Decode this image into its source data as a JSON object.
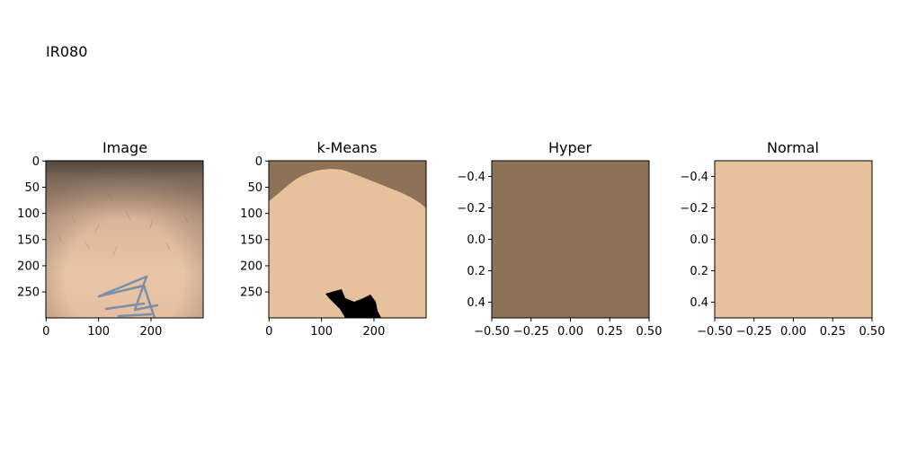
{
  "suptitle": "IR080",
  "chart_data": [
    {
      "type": "heatmap",
      "title": "Image",
      "content": "skin photograph with hair and a faded blue tattoo near the bottom",
      "xticks": [
        0,
        100,
        200
      ],
      "yticks": [
        0,
        50,
        100,
        150,
        200,
        250
      ],
      "xlim": [
        -0.5,
        299.5
      ],
      "ylim": [
        299.5,
        -0.5
      ]
    },
    {
      "type": "heatmap",
      "title": "k-Means",
      "colors": {
        "dark_skin": "#8e7257",
        "light_skin": "#e7c09c",
        "black": "#000000"
      },
      "xticks": [
        0,
        100,
        200
      ],
      "yticks": [
        0,
        50,
        100,
        150,
        200,
        250
      ],
      "xlim": [
        -0.5,
        299.5
      ],
      "ylim": [
        299.5,
        -0.5
      ]
    },
    {
      "type": "heatmap",
      "title": "Hyper",
      "color": "#8e7257",
      "xticks": [
        -0.5,
        -0.25,
        0.0,
        0.25,
        0.5
      ],
      "xtick_labels": [
        "−0.50",
        "−0.25",
        "0.00",
        "0.25",
        "0.50"
      ],
      "yticks": [
        -0.4,
        -0.2,
        0.0,
        0.2,
        0.4
      ],
      "ytick_labels": [
        "−0.4",
        "−0.2",
        "0.0",
        "0.2",
        "0.4"
      ],
      "xlim": [
        -0.5,
        0.5
      ],
      "ylim": [
        0.5,
        -0.5
      ]
    },
    {
      "type": "heatmap",
      "title": "Normal",
      "color": "#e7c09c",
      "xticks": [
        -0.5,
        -0.25,
        0.0,
        0.25,
        0.5
      ],
      "xtick_labels": [
        "−0.50",
        "−0.25",
        "0.00",
        "0.25",
        "0.50"
      ],
      "yticks": [
        -0.4,
        -0.2,
        0.0,
        0.2,
        0.4
      ],
      "ytick_labels": [
        "−0.4",
        "−0.2",
        "0.0",
        "0.2",
        "0.4"
      ],
      "xlim": [
        -0.5,
        0.5
      ],
      "ylim": [
        0.5,
        -0.5
      ]
    }
  ]
}
